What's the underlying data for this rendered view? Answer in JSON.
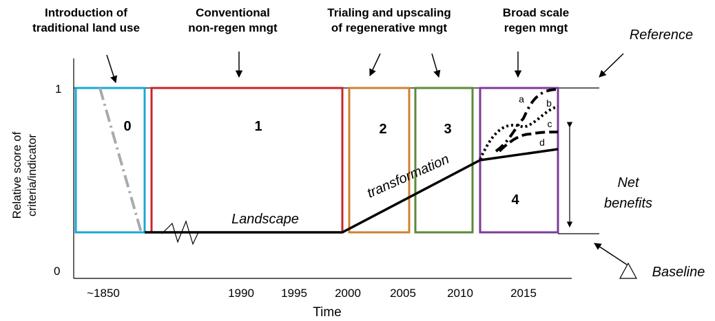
{
  "phases": [
    {
      "lines": [
        "Introduction of",
        "traditional land use"
      ]
    },
    {
      "lines": [
        "Conventional",
        "non-regen mngt"
      ]
    },
    {
      "lines": [
        "Trialing and upscaling",
        "of regenerative mngt"
      ]
    },
    {
      "lines": [
        "Broad scale",
        "regen mngt"
      ]
    }
  ],
  "reference": "Reference",
  "y_axis": {
    "lines": [
      "Relative score of",
      "criteria/indicator"
    ],
    "top": "1",
    "bottom": "0"
  },
  "boxes": [
    "0",
    "1",
    "2",
    "3",
    "4"
  ],
  "annotations": {
    "landscape": "Landscape",
    "transformation": "transformation",
    "net_benefits": [
      "Net",
      "benefits"
    ],
    "baseline": "Baseline"
  },
  "curves": [
    "a",
    "b",
    "c",
    "d"
  ],
  "x_axis": {
    "labels": [
      "~1850",
      "1990",
      "1995",
      "2000",
      "2005",
      "2010",
      "2015"
    ],
    "title": "Time"
  }
}
